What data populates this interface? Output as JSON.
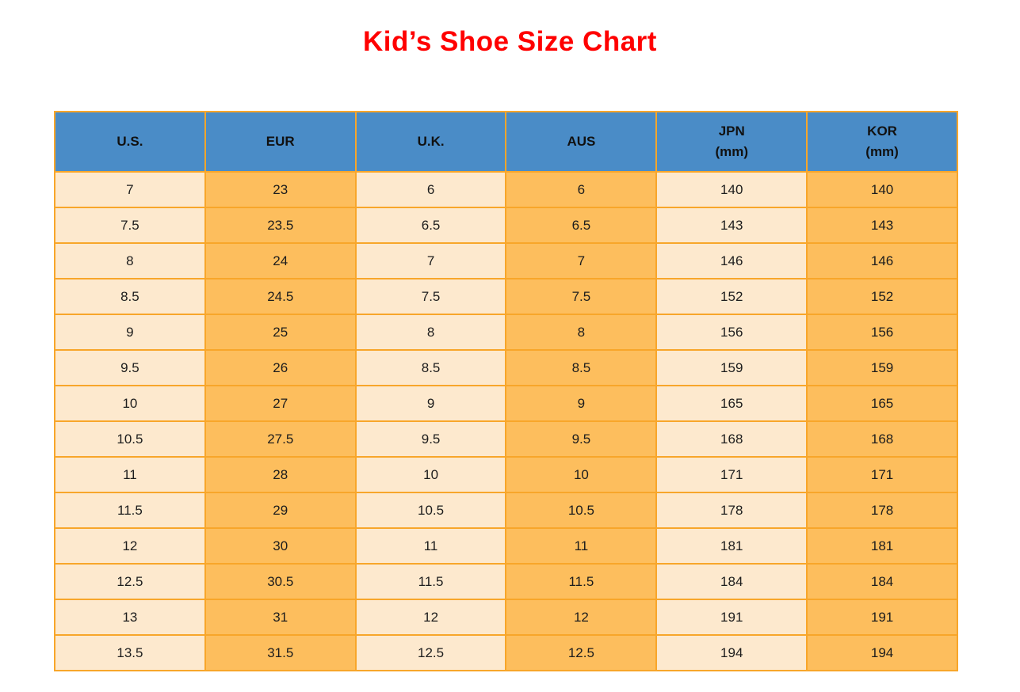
{
  "page": {
    "background": "#ffffff"
  },
  "colors": {
    "title": "#FF0000",
    "header_bg": "#4A8CC7",
    "column_light": "#FDE9CE",
    "column_orange": "#FDBE5D",
    "grid_border": "#F8A62A",
    "cell_text": "#1d1d1d",
    "header_text": "#111111"
  },
  "chart_data": {
    "type": "table",
    "title": "Kid’s Shoe Size Chart",
    "columns": [
      {
        "label": "U.S.",
        "sublabel": ""
      },
      {
        "label": "EUR",
        "sublabel": ""
      },
      {
        "label": "U.K.",
        "sublabel": ""
      },
      {
        "label": "AUS",
        "sublabel": ""
      },
      {
        "label": "JPN",
        "sublabel": "(mm)"
      },
      {
        "label": "KOR",
        "sublabel": "(mm)"
      }
    ],
    "rows": [
      [
        "7",
        "23",
        "6",
        "6",
        "140",
        "140"
      ],
      [
        "7.5",
        "23.5",
        "6.5",
        "6.5",
        "143",
        "143"
      ],
      [
        "8",
        "24",
        "7",
        "7",
        "146",
        "146"
      ],
      [
        "8.5",
        "24.5",
        "7.5",
        "7.5",
        "152",
        "152"
      ],
      [
        "9",
        "25",
        "8",
        "8",
        "156",
        "156"
      ],
      [
        "9.5",
        "26",
        "8.5",
        "8.5",
        "159",
        "159"
      ],
      [
        "10",
        "27",
        "9",
        "9",
        "165",
        "165"
      ],
      [
        "10.5",
        "27.5",
        "9.5",
        "9.5",
        "168",
        "168"
      ],
      [
        "11",
        "28",
        "10",
        "10",
        "171",
        "171"
      ],
      [
        "11.5",
        "29",
        "10.5",
        "10.5",
        "178",
        "178"
      ],
      [
        "12",
        "30",
        "11",
        "11",
        "181",
        "181"
      ],
      [
        "12.5",
        "30.5",
        "11.5",
        "11.5",
        "184",
        "184"
      ],
      [
        "13",
        "31",
        "12",
        "12",
        "191",
        "191"
      ],
      [
        "13.5",
        "31.5",
        "12.5",
        "12.5",
        "194",
        "194"
      ]
    ]
  }
}
